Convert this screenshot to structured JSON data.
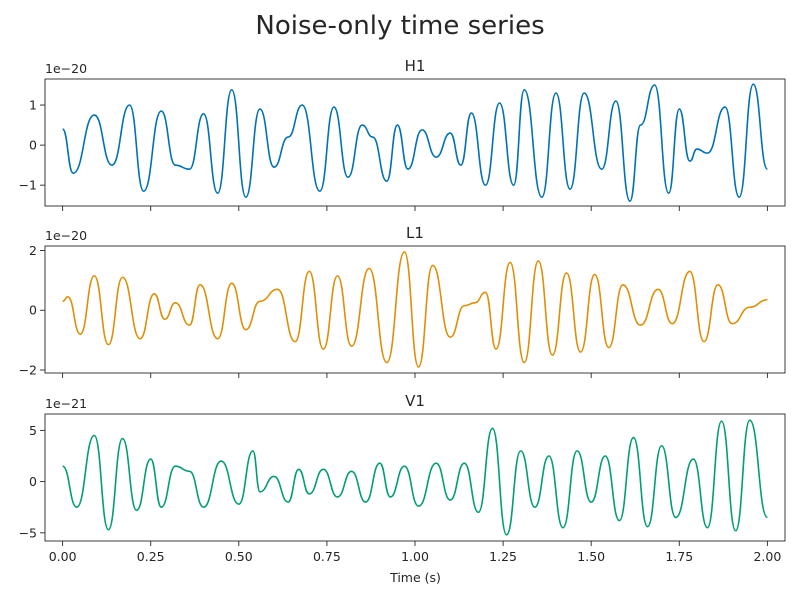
{
  "figure": {
    "title": "Noise-only time series",
    "xlabel": "Time (s)"
  },
  "chart_data": [
    {
      "type": "line",
      "title": "H1",
      "offset_text": "1e−20",
      "xlabel": "",
      "ylabel": "",
      "xlim": [
        -0.05,
        2.05
      ],
      "ylim": [
        -1.52,
        1.65
      ],
      "xticks": [
        0.0,
        0.25,
        0.5,
        0.75,
        1.0,
        1.25,
        1.5,
        1.75,
        2.0
      ],
      "yticks": [
        -1,
        0,
        1
      ],
      "ytick_labels": [
        "−1",
        "0",
        "1"
      ],
      "grid": false,
      "color": "#0072b2",
      "series": [
        {
          "x": [
            0.0,
            0.03,
            0.09,
            0.14,
            0.19,
            0.23,
            0.28,
            0.32,
            0.36,
            0.4,
            0.44,
            0.48,
            0.52,
            0.56,
            0.6,
            0.64,
            0.68,
            0.73,
            0.77,
            0.81,
            0.85,
            0.88,
            0.92,
            0.95,
            0.98,
            1.02,
            1.06,
            1.1,
            1.13,
            1.16,
            1.2,
            1.24,
            1.28,
            1.31,
            1.36,
            1.4,
            1.44,
            1.48,
            1.53,
            1.57,
            1.61,
            1.64,
            1.68,
            1.72,
            1.75,
            1.78,
            1.8,
            1.83,
            1.88,
            1.92,
            1.96,
            2.0
          ],
          "y": [
            0.4,
            -0.7,
            0.75,
            -0.5,
            1.0,
            -1.15,
            0.85,
            -0.5,
            -0.6,
            0.78,
            -1.2,
            1.38,
            -1.3,
            0.9,
            -0.55,
            0.2,
            1.0,
            -1.15,
            0.95,
            -0.8,
            0.5,
            0.2,
            -0.9,
            0.5,
            -0.6,
            0.38,
            -0.3,
            0.3,
            -0.5,
            0.8,
            -1.0,
            1.05,
            -1.0,
            1.38,
            -1.3,
            1.3,
            -1.1,
            1.3,
            -0.6,
            1.1,
            -1.4,
            0.5,
            1.5,
            -1.2,
            0.9,
            -0.4,
            -0.1,
            -0.2,
            0.95,
            -1.3,
            1.52,
            -0.6
          ]
        }
      ]
    },
    {
      "type": "line",
      "title": "L1",
      "offset_text": "1e−20",
      "xlabel": "",
      "ylabel": "",
      "xlim": [
        -0.05,
        2.05
      ],
      "ylim": [
        -2.1,
        2.15
      ],
      "xticks": [
        0.0,
        0.25,
        0.5,
        0.75,
        1.0,
        1.25,
        1.5,
        1.75,
        2.0
      ],
      "yticks": [
        -2,
        0,
        2
      ],
      "ytick_labels": [
        "−2",
        "0",
        "2"
      ],
      "grid": false,
      "color": "#de8f05",
      "series": [
        {
          "x": [
            0.0,
            0.015,
            0.05,
            0.09,
            0.13,
            0.17,
            0.22,
            0.26,
            0.29,
            0.32,
            0.36,
            0.39,
            0.44,
            0.48,
            0.52,
            0.56,
            0.61,
            0.66,
            0.7,
            0.74,
            0.78,
            0.82,
            0.87,
            0.92,
            0.97,
            1.01,
            1.05,
            1.1,
            1.14,
            1.17,
            1.2,
            1.23,
            1.27,
            1.31,
            1.35,
            1.39,
            1.43,
            1.47,
            1.51,
            1.55,
            1.59,
            1.64,
            1.69,
            1.73,
            1.78,
            1.82,
            1.86,
            1.9,
            1.95,
            2.0
          ],
          "y": [
            0.3,
            0.45,
            -0.8,
            1.15,
            -1.15,
            1.1,
            -0.95,
            0.55,
            -0.3,
            0.25,
            -0.5,
            0.85,
            -0.95,
            0.9,
            -0.65,
            0.3,
            0.7,
            -1.05,
            1.3,
            -1.3,
            1.15,
            -1.2,
            1.4,
            -1.75,
            1.95,
            -1.9,
            1.5,
            -0.9,
            0.15,
            0.25,
            0.6,
            -1.3,
            1.6,
            -1.75,
            1.65,
            -1.5,
            1.25,
            -1.4,
            1.2,
            -1.25,
            0.85,
            -0.5,
            0.7,
            -0.45,
            1.3,
            -1.05,
            0.85,
            -0.45,
            0.1,
            0.35
          ]
        }
      ]
    },
    {
      "type": "line",
      "title": "V1",
      "offset_text": "1e−21",
      "xlabel": "",
      "ylabel": "",
      "xlim": [
        -0.05,
        2.05
      ],
      "ylim": [
        -5.8,
        6.6
      ],
      "xticks": [
        0.0,
        0.25,
        0.5,
        0.75,
        1.0,
        1.25,
        1.5,
        1.75,
        2.0
      ],
      "xtick_labels": [
        "0.00",
        "0.25",
        "0.50",
        "0.75",
        "1.00",
        "1.25",
        "1.50",
        "1.75",
        "2.00"
      ],
      "yticks": [
        -5,
        0,
        5
      ],
      "ytick_labels": [
        "−5",
        "0",
        "5"
      ],
      "grid": false,
      "color": "#029e73",
      "series": [
        {
          "x": [
            0.0,
            0.04,
            0.09,
            0.13,
            0.17,
            0.21,
            0.25,
            0.28,
            0.32,
            0.36,
            0.4,
            0.45,
            0.5,
            0.54,
            0.56,
            0.6,
            0.64,
            0.67,
            0.7,
            0.74,
            0.78,
            0.82,
            0.86,
            0.9,
            0.93,
            0.97,
            1.01,
            1.06,
            1.1,
            1.14,
            1.18,
            1.22,
            1.26,
            1.3,
            1.34,
            1.38,
            1.42,
            1.46,
            1.5,
            1.54,
            1.58,
            1.62,
            1.66,
            1.7,
            1.74,
            1.79,
            1.83,
            1.87,
            1.91,
            1.95,
            2.0
          ],
          "y": [
            1.5,
            -2.5,
            4.5,
            -4.7,
            4.2,
            -2.8,
            2.2,
            -2.5,
            1.5,
            1.0,
            -2.5,
            2.0,
            -2.2,
            3.0,
            -1.0,
            0.5,
            -2.0,
            1.2,
            -1.2,
            1.2,
            -1.5,
            1.0,
            -2.0,
            1.8,
            -1.5,
            1.5,
            -2.4,
            1.8,
            -1.8,
            1.8,
            -3.0,
            5.2,
            -5.2,
            3.0,
            -2.5,
            2.5,
            -4.5,
            3.0,
            -2.0,
            2.5,
            -3.8,
            4.3,
            -4.4,
            3.5,
            -3.5,
            2.2,
            -4.5,
            5.9,
            -4.8,
            6.0,
            -3.5
          ]
        }
      ]
    }
  ]
}
